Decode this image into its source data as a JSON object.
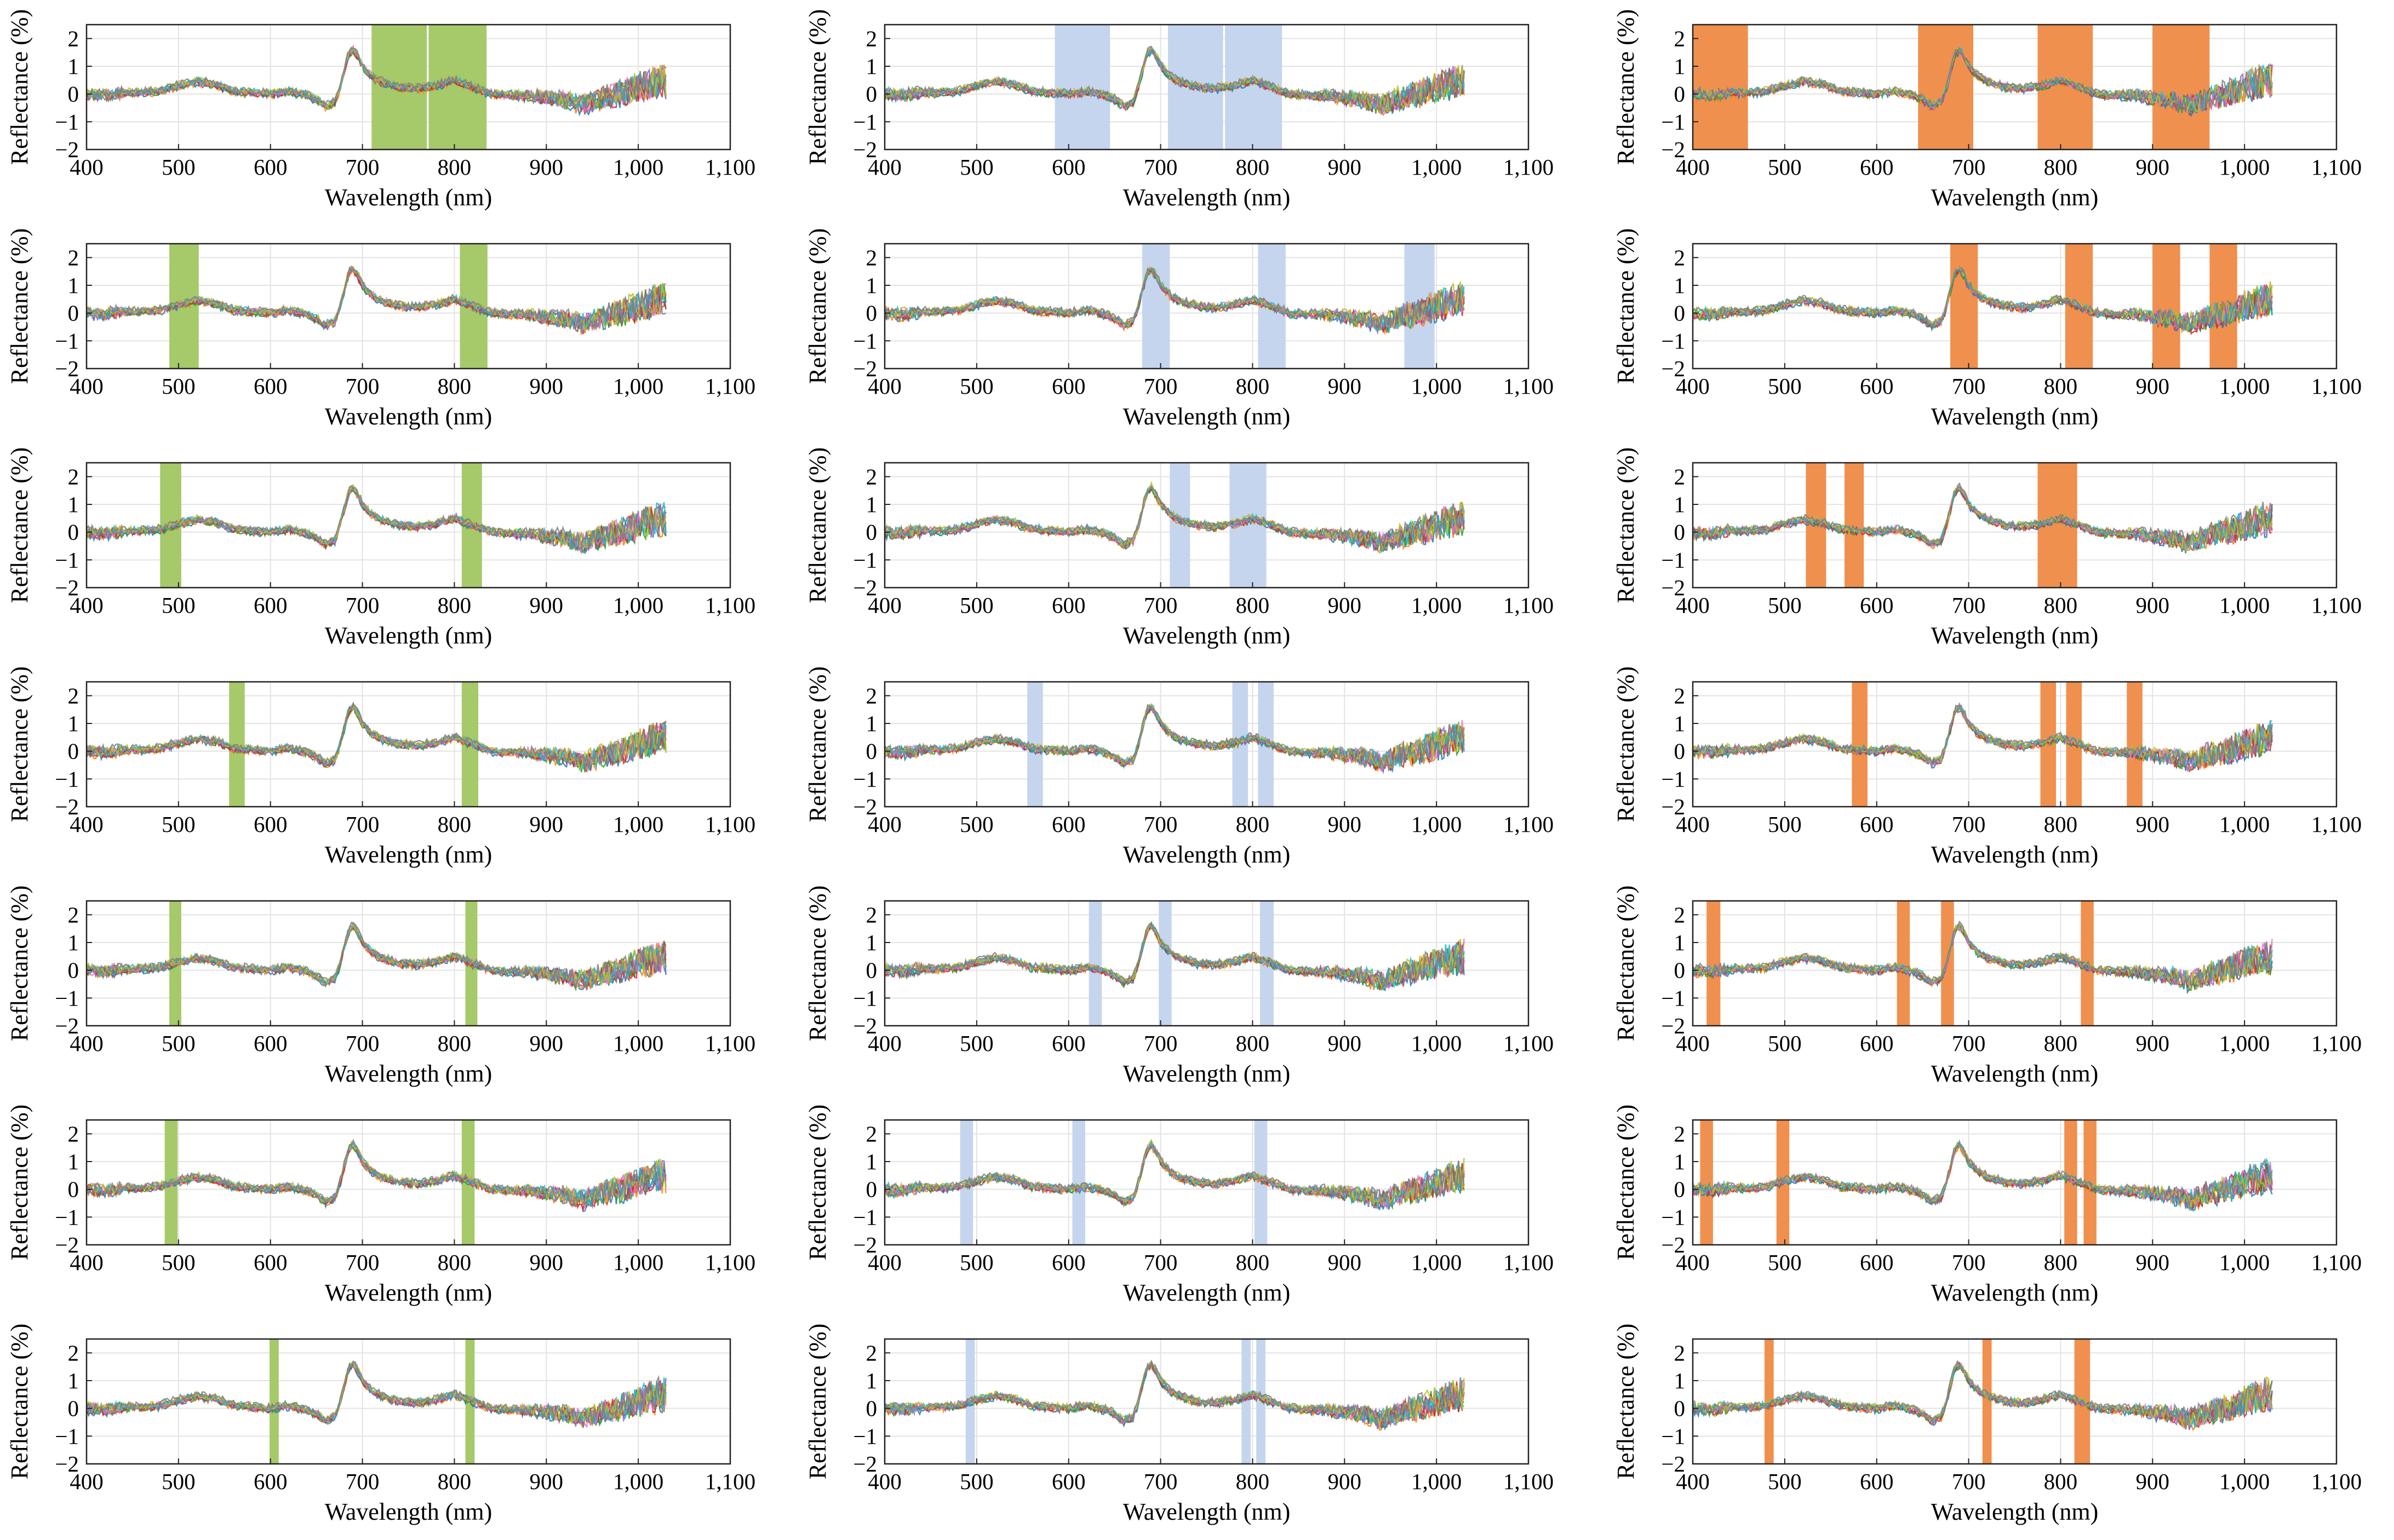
{
  "chart_data": {
    "type": "line",
    "layout": "grid",
    "rows": 7,
    "columns": 3,
    "xlabel": "Wavelength (nm)",
    "ylabel": "Reflectance (%)",
    "xlim": [
      400,
      1100
    ],
    "ylim": [
      -2,
      2.5
    ],
    "xticks": [
      400,
      500,
      600,
      700,
      800,
      900,
      1000,
      1100
    ],
    "xtick_labels": [
      "400",
      "500",
      "600",
      "700",
      "800",
      "900",
      "1,000",
      "1,100"
    ],
    "yticks": [
      -2,
      -1,
      0,
      1,
      2
    ],
    "ytick_labels": [
      "−2",
      "−1",
      "0",
      "1",
      "2"
    ],
    "grid": true,
    "column_colors": [
      "#a6c96a",
      "#c5d5ee",
      "#f0904f"
    ],
    "spectrum": {
      "x": [
        400,
        420,
        440,
        460,
        480,
        500,
        520,
        540,
        560,
        580,
        600,
        620,
        640,
        650,
        660,
        670,
        675,
        680,
        685,
        690,
        695,
        700,
        710,
        720,
        740,
        760,
        780,
        800,
        820,
        840,
        860,
        880,
        900,
        920,
        940,
        960,
        980,
        1000,
        1020,
        1030
      ],
      "y": [
        0,
        -0.05,
        0.05,
        0.05,
        0.1,
        0.3,
        0.45,
        0.35,
        0.1,
        0.05,
        0.0,
        0.1,
        -0.05,
        -0.2,
        -0.45,
        -0.3,
        0.15,
        0.8,
        1.45,
        1.6,
        1.35,
        1.0,
        0.65,
        0.45,
        0.25,
        0.2,
        0.3,
        0.5,
        0.25,
        0.0,
        -0.05,
        -0.05,
        -0.15,
        -0.2,
        -0.4,
        -0.15,
        0.0,
        0.25,
        0.45,
        0.5
      ],
      "x_end": 1030
    },
    "series_colors": [
      "#1f77b4",
      "#ff7f0e",
      "#2ca02c",
      "#d62728",
      "#9467bd",
      "#8c564b",
      "#e377c2",
      "#17becf",
      "#bcbd22",
      "#7f7f7f"
    ],
    "charts": [
      {
        "row": 0,
        "col": 0,
        "bands": [
          [
            710,
            770
          ],
          [
            772,
            835
          ]
        ]
      },
      {
        "row": 0,
        "col": 1,
        "bands": [
          [
            585,
            645
          ],
          [
            708,
            768
          ],
          [
            770,
            832
          ]
        ]
      },
      {
        "row": 0,
        "col": 2,
        "bands": [
          [
            400,
            460
          ],
          [
            645,
            705
          ],
          [
            775,
            835
          ],
          [
            900,
            962
          ]
        ]
      },
      {
        "row": 1,
        "col": 0,
        "bands": [
          [
            490,
            522
          ],
          [
            806,
            836
          ]
        ]
      },
      {
        "row": 1,
        "col": 1,
        "bands": [
          [
            680,
            710
          ],
          [
            806,
            836
          ],
          [
            965,
            998
          ]
        ]
      },
      {
        "row": 1,
        "col": 2,
        "bands": [
          [
            680,
            710
          ],
          [
            805,
            835
          ],
          [
            900,
            930
          ],
          [
            962,
            992
          ]
        ]
      },
      {
        "row": 2,
        "col": 0,
        "bands": [
          [
            480,
            503
          ],
          [
            808,
            830
          ]
        ]
      },
      {
        "row": 2,
        "col": 1,
        "bands": [
          [
            710,
            732
          ],
          [
            775,
            815
          ]
        ]
      },
      {
        "row": 2,
        "col": 2,
        "bands": [
          [
            523,
            545
          ],
          [
            565,
            586
          ],
          [
            775,
            818
          ]
        ]
      },
      {
        "row": 3,
        "col": 0,
        "bands": [
          [
            555,
            572
          ],
          [
            808,
            826
          ]
        ]
      },
      {
        "row": 3,
        "col": 1,
        "bands": [
          [
            555,
            572
          ],
          [
            778,
            795
          ],
          [
            806,
            823
          ]
        ]
      },
      {
        "row": 3,
        "col": 2,
        "bands": [
          [
            573,
            590
          ],
          [
            778,
            795
          ],
          [
            806,
            823
          ],
          [
            872,
            889
          ]
        ]
      },
      {
        "row": 4,
        "col": 0,
        "bands": [
          [
            490,
            503
          ],
          [
            812,
            825
          ]
        ]
      },
      {
        "row": 4,
        "col": 1,
        "bands": [
          [
            622,
            636
          ],
          [
            698,
            712
          ],
          [
            808,
            823
          ]
        ]
      },
      {
        "row": 4,
        "col": 2,
        "bands": [
          [
            415,
            430
          ],
          [
            622,
            636
          ],
          [
            670,
            684
          ],
          [
            822,
            836
          ]
        ]
      },
      {
        "row": 5,
        "col": 0,
        "bands": [
          [
            485,
            499
          ],
          [
            808,
            822
          ]
        ]
      },
      {
        "row": 5,
        "col": 1,
        "bands": [
          [
            482,
            496
          ],
          [
            604,
            618
          ],
          [
            802,
            816
          ]
        ]
      },
      {
        "row": 5,
        "col": 2,
        "bands": [
          [
            408,
            422
          ],
          [
            491,
            505
          ],
          [
            804,
            818
          ],
          [
            825,
            839
          ]
        ]
      },
      {
        "row": 6,
        "col": 0,
        "bands": [
          [
            599,
            609
          ],
          [
            812,
            822
          ]
        ]
      },
      {
        "row": 6,
        "col": 1,
        "bands": [
          [
            488,
            498
          ],
          [
            788,
            798
          ],
          [
            804,
            814
          ]
        ]
      },
      {
        "row": 6,
        "col": 2,
        "bands": [
          [
            478,
            488
          ],
          [
            715,
            725
          ],
          [
            815,
            832
          ]
        ]
      }
    ]
  }
}
